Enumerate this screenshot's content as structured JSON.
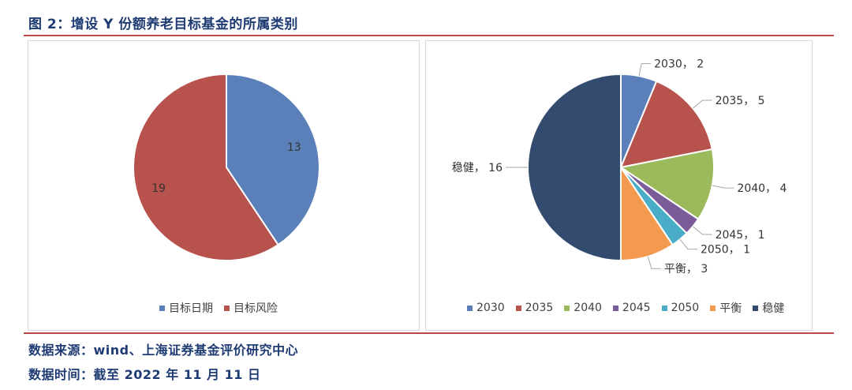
{
  "title": "图 2：增设 Y 份额养老目标基金的所属类别",
  "colors": {
    "title_text": "#1f3b73",
    "rule": "#b94a48"
  },
  "chart_data": [
    {
      "type": "pie",
      "series": [
        {
          "name": "目标日期",
          "value": 13,
          "label": "13",
          "color": "#5b80b9"
        },
        {
          "name": "目标风险",
          "value": 19,
          "label": "19",
          "color": "#b8524d"
        }
      ],
      "legend_position": "bottom"
    },
    {
      "type": "pie",
      "series": [
        {
          "name": "2030",
          "value": 2,
          "label": "2030， 2",
          "color": "#5b80b9"
        },
        {
          "name": "2035",
          "value": 5,
          "label": "2035， 5",
          "color": "#b8524d"
        },
        {
          "name": "2040",
          "value": 4,
          "label": "2040， 4",
          "color": "#9bba5c"
        },
        {
          "name": "2045",
          "value": 1,
          "label": "2045， 1",
          "color": "#7a5c99"
        },
        {
          "name": "2050",
          "value": 1,
          "label": "2050， 1",
          "color": "#4aacc6"
        },
        {
          "name": "平衡",
          "value": 3,
          "label": "平衡， 3",
          "color": "#f39a4e"
        },
        {
          "name": "稳健",
          "value": 16,
          "label": "稳健， 16",
          "color": "#344b70"
        }
      ],
      "legend_position": "bottom"
    }
  ],
  "footer": {
    "source": "数据来源：wind、上海证券基金评价研究中心",
    "date": "数据时间：截至 2022 年 11 月 11 日"
  }
}
